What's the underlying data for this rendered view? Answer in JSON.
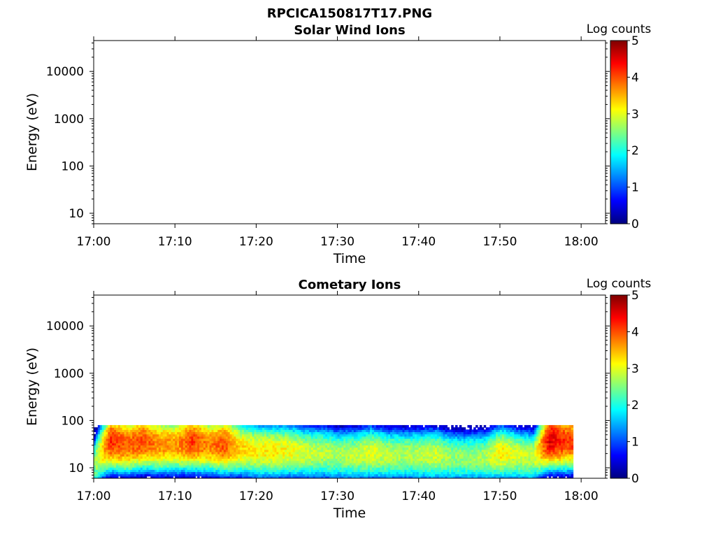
{
  "figure": {
    "title": "RPCICA150817T17.PNG"
  },
  "chart_data": [
    {
      "type": "heatmap",
      "title": "Solar Wind Ions",
      "xlabel": "Time",
      "ylabel": "Energy (eV)",
      "x_ticks": [
        "17:00",
        "17:10",
        "17:20",
        "17:30",
        "17:40",
        "17:50",
        "18:00"
      ],
      "x_range": [
        "17:00",
        "18:03"
      ],
      "y_scale": "log",
      "y_ticks": [
        10,
        100,
        1000,
        10000
      ],
      "y_tick_labels": [
        "10",
        "100",
        "1000",
        "10000"
      ],
      "y_range": [
        6,
        45000
      ],
      "colorbar": {
        "label": "Log counts",
        "range": [
          0,
          5
        ],
        "ticks": [
          "0",
          "1",
          "2",
          "3",
          "4",
          "5"
        ],
        "colormap": "jet"
      },
      "data": "empty"
    },
    {
      "type": "heatmap",
      "title": "Cometary Ions",
      "xlabel": "Time",
      "ylabel": "Energy (eV)",
      "x_ticks": [
        "17:00",
        "17:10",
        "17:20",
        "17:30",
        "17:40",
        "17:50",
        "18:00"
      ],
      "x_range": [
        "17:00",
        "18:03"
      ],
      "y_scale": "log",
      "y_ticks": [
        10,
        100,
        1000,
        10000
      ],
      "y_tick_labels": [
        "10",
        "100",
        "1000",
        "10000"
      ],
      "y_range": [
        6,
        45000
      ],
      "colorbar": {
        "label": "Log counts",
        "range": [
          0,
          5
        ],
        "ticks": [
          "0",
          "1",
          "2",
          "3",
          "4",
          "5"
        ],
        "colormap": "jet"
      },
      "data_time_range": [
        "17:00",
        "17:59"
      ],
      "data_energy_range_eV": [
        6,
        80
      ],
      "peak_log_counts": 4.6,
      "peak_energy_profile": {
        "time": [
          "17:00",
          "17:02",
          "17:04",
          "17:06",
          "17:08",
          "17:10",
          "17:12",
          "17:14",
          "17:16",
          "17:18",
          "17:20",
          "17:22",
          "17:24",
          "17:26",
          "17:28",
          "17:30",
          "17:32",
          "17:34",
          "17:36",
          "17:38",
          "17:40",
          "17:42",
          "17:44",
          "17:46",
          "17:48",
          "17:50",
          "17:52",
          "17:54",
          "17:56",
          "17:58"
        ],
        "energy_eV": [
          12,
          35,
          30,
          35,
          30,
          30,
          35,
          30,
          30,
          25,
          22,
          22,
          22,
          20,
          20,
          18,
          18,
          20,
          18,
          18,
          18,
          18,
          16,
          16,
          16,
          20,
          18,
          16,
          38,
          35
        ],
        "log_counts": [
          2.6,
          4.2,
          3.9,
          4.0,
          3.7,
          3.6,
          4.1,
          3.7,
          4.0,
          3.3,
          3.2,
          3.2,
          3.1,
          2.9,
          2.8,
          2.7,
          2.8,
          3.0,
          2.8,
          2.7,
          2.8,
          2.9,
          2.6,
          2.6,
          2.7,
          3.2,
          2.9,
          2.8,
          4.5,
          4.1
        ]
      }
    }
  ]
}
